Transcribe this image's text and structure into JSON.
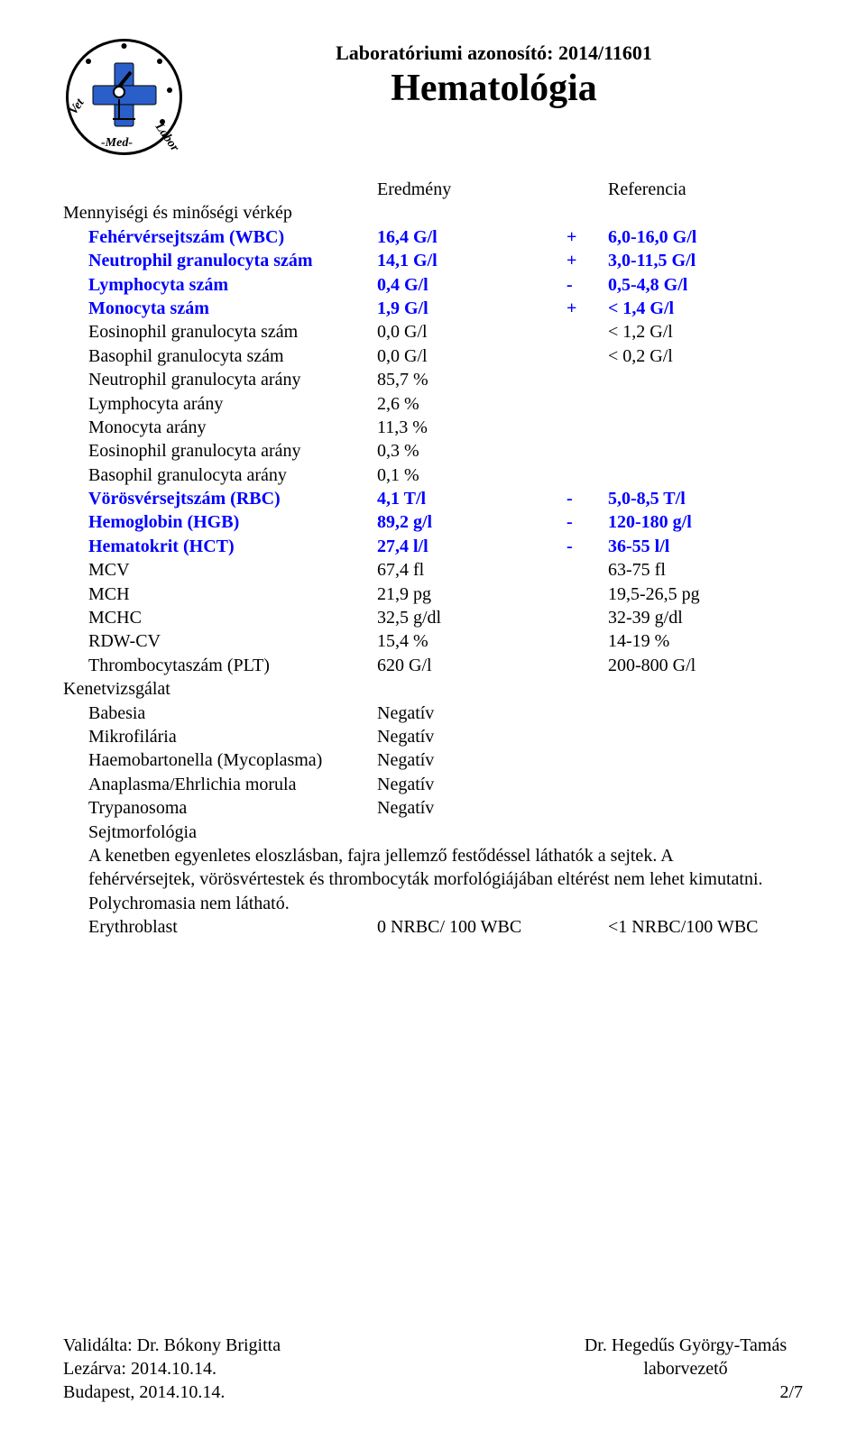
{
  "header": {
    "lab_id_label": "Laboratóriumi azonosító: 2014/11601",
    "title": "Hematológia",
    "logo": {
      "brand_text_top": "Vet",
      "brand_text_mid": "-Med-",
      "brand_text_bot": "Labor",
      "cross_color": "#2a5fc9",
      "outline_color": "#000000"
    }
  },
  "columns": {
    "result": "Eredmény",
    "reference": "Referencia"
  },
  "sections": [
    {
      "name": "Mennyiségi és minőségi vérkép",
      "rows": [
        {
          "name": "Fehérvérsejtszám (WBC)",
          "value": "16,4 G/l",
          "flag": "+",
          "ref": "6,0-16,0 G/l",
          "abnormal": true
        },
        {
          "name": "Neutrophil granulocyta szám",
          "value": "14,1 G/l",
          "flag": "+",
          "ref": "3,0-11,5 G/l",
          "abnormal": true
        },
        {
          "name": "Lymphocyta szám",
          "value": "0,4 G/l",
          "flag": "-",
          "ref": "0,5-4,8 G/l",
          "abnormal": true
        },
        {
          "name": "Monocyta szám",
          "value": "1,9 G/l",
          "flag": "+",
          "ref": "< 1,4 G/l",
          "abnormal": true
        },
        {
          "name": "Eosinophil granulocyta szám",
          "value": "0,0 G/l",
          "flag": "",
          "ref": "< 1,2 G/l",
          "abnormal": false
        },
        {
          "name": "Basophil granulocyta szám",
          "value": "0,0 G/l",
          "flag": "",
          "ref": "< 0,2 G/l",
          "abnormal": false
        },
        {
          "name": "Neutrophil granulocyta arány",
          "value": "85,7 %",
          "flag": "",
          "ref": "",
          "abnormal": false
        },
        {
          "name": "Lymphocyta arány",
          "value": "2,6 %",
          "flag": "",
          "ref": "",
          "abnormal": false
        },
        {
          "name": "Monocyta arány",
          "value": "11,3 %",
          "flag": "",
          "ref": "",
          "abnormal": false
        },
        {
          "name": "Eosinophil granulocyta arány",
          "value": "0,3 %",
          "flag": "",
          "ref": "",
          "abnormal": false
        },
        {
          "name": "Basophil granulocyta arány",
          "value": "0,1 %",
          "flag": "",
          "ref": "",
          "abnormal": false
        },
        {
          "name": "Vörösvérsejtszám (RBC)",
          "value": "4,1 T/l",
          "flag": "-",
          "ref": "5,0-8,5 T/l",
          "abnormal": true
        },
        {
          "name": "Hemoglobin (HGB)",
          "value": "89,2 g/l",
          "flag": "-",
          "ref": "120-180 g/l",
          "abnormal": true
        },
        {
          "name": "Hematokrit (HCT)",
          "value": "27,4 l/l",
          "flag": "-",
          "ref": "36-55 l/l",
          "abnormal": true
        },
        {
          "name": "MCV",
          "value": "67,4 fl",
          "flag": "",
          "ref": "63-75 fl",
          "abnormal": false
        },
        {
          "name": "MCH",
          "value": "21,9 pg",
          "flag": "",
          "ref": "19,5-26,5 pg",
          "abnormal": false
        },
        {
          "name": "MCHC",
          "value": "32,5 g/dl",
          "flag": "",
          "ref": "32-39 g/dl",
          "abnormal": false
        },
        {
          "name": "RDW-CV",
          "value": "15,4 %",
          "flag": "",
          "ref": "14-19 %",
          "abnormal": false
        },
        {
          "name": "Thrombocytaszám (PLT)",
          "value": "620 G/l",
          "flag": "",
          "ref": "200-800 G/l",
          "abnormal": false
        }
      ]
    },
    {
      "name": "Kenetvizsgálat",
      "rows": [
        {
          "name": "Babesia",
          "value": "Negatív",
          "flag": "",
          "ref": "",
          "abnormal": false
        },
        {
          "name": "Mikrofilária",
          "value": "Negatív",
          "flag": "",
          "ref": "",
          "abnormal": false
        },
        {
          "name": "Haemobartonella (Mycoplasma)",
          "value": "Negatív",
          "flag": "",
          "ref": "",
          "abnormal": false
        },
        {
          "name": "Anaplasma/Ehrlichia morula",
          "value": "Negatív",
          "flag": "",
          "ref": "",
          "abnormal": false
        },
        {
          "name": "Trypanosoma",
          "value": "Negatív",
          "flag": "",
          "ref": "",
          "abnormal": false
        }
      ]
    }
  ],
  "morphology": {
    "label": "Sejtmorfológia",
    "text": "A kenetben egyenletes eloszlásban, fajra jellemző festődéssel láthatók a sejtek. A fehérvérsejtek, vörösvértestek és thrombocyták morfológiájában eltérést nem lehet kimutatni. Polychromasia nem látható."
  },
  "erythroblast": {
    "name": "Erythroblast",
    "value": "0 NRBC/ 100 WBC",
    "ref": "<1 NRBC/100 WBC"
  },
  "footer": {
    "validated_by": "Validálta: Dr. Bókony Brigitta",
    "closed": "Lezárva: 2014.10.14.",
    "city_date": "Budapest, 2014.10.14."
  },
  "signer": {
    "name": "Dr. Hegedűs György-Tamás",
    "role": "laborvezető",
    "page": "2/7"
  }
}
